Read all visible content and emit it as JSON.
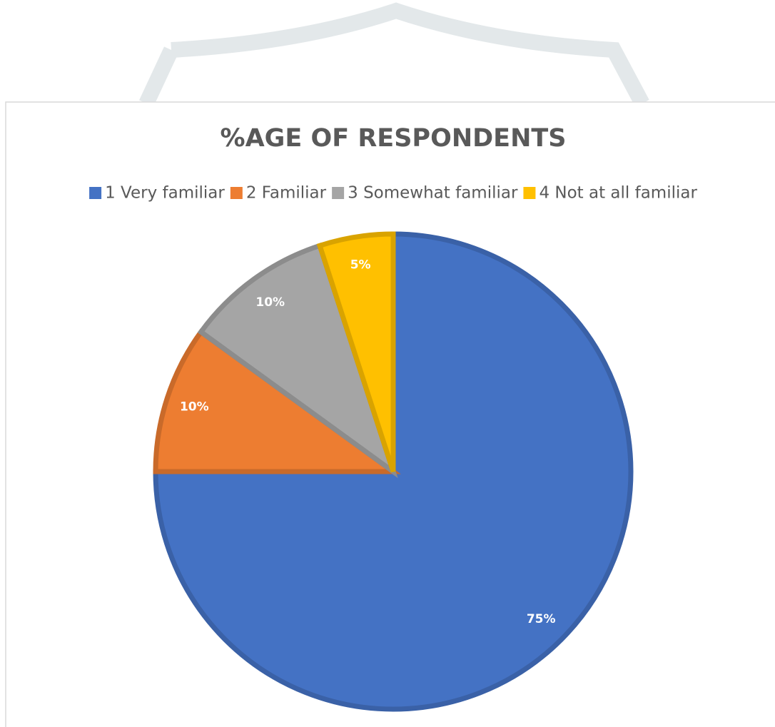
{
  "chart_data": {
    "type": "pie",
    "title": "%AGE OF RESPONDENTS",
    "categories": [
      "1 Very familiar",
      "2 Familiar",
      "3 Somewhat familiar",
      "4 Not at all familiar"
    ],
    "values": [
      75,
      10,
      10,
      5
    ],
    "value_labels": [
      "75%",
      "10%",
      "10%",
      "5%"
    ],
    "colors": [
      "#4472c4",
      "#ed7d31",
      "#a5a5a5",
      "#ffc000"
    ],
    "legend": "top"
  }
}
